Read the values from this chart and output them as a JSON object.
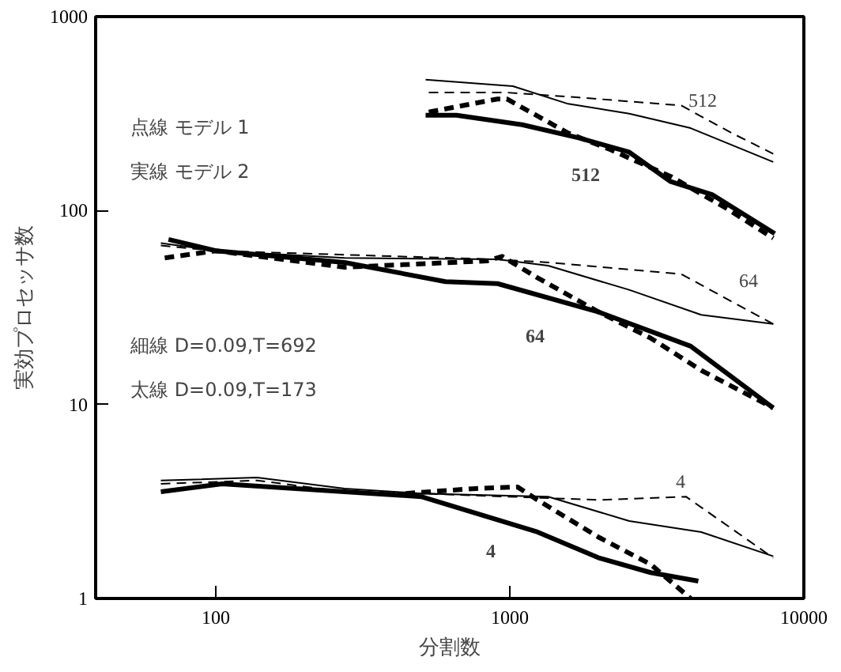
{
  "chart_data": {
    "type": "line",
    "xlabel": "分割数",
    "ylabel": "実効プロセッサ数",
    "log": "xy",
    "xlim": [
      39,
      10000
    ],
    "ylim": [
      1,
      1000
    ],
    "xticks": [
      100,
      1000,
      10000
    ],
    "yticks": [
      1,
      10,
      100,
      1000
    ],
    "grid": false,
    "series": [
      {
        "color": "#000000",
        "line_style": "solid",
        "x": [
          517,
          1024,
          1578,
          2547,
          4121,
          7870
        ],
        "values": [
          473,
          438,
          355,
          316,
          266,
          178
        ]
      },
      {
        "color": "#000000",
        "line_style": "dashed",
        "x": [
          530,
          977,
          1714,
          3828,
          5689,
          7870
        ],
        "values": [
          406,
          406,
          383,
          348,
          251,
          196
        ]
      },
      {
        "color": "#000000",
        "line_style": "solid",
        "x": [
          517,
          658,
          1101,
          1714,
          2547,
          3524,
          4870,
          7962
        ],
        "values": [
          310,
          310,
          277,
          237,
          200,
          141,
          121,
          76
        ]
      },
      {
        "color": "#000000",
        "line_style": "dashed",
        "x": [
          530,
          908,
          977,
          1578,
          2183,
          3524,
          5495,
          7870
        ],
        "values": [
          322,
          376,
          376,
          251,
          207,
          150,
          102,
          72
        ]
      },
      {
        "color": "#000000",
        "line_style": "solid",
        "x": [
          65,
          100,
          274,
          908,
          1349,
          2547,
          4477,
          7870
        ],
        "values": [
          68,
          62,
          57,
          56,
          52,
          39,
          29,
          26
        ]
      },
      {
        "color": "#000000",
        "line_style": "dashed",
        "x": [
          65,
          100,
          908,
          1349,
          3828,
          7870
        ],
        "values": [
          66,
          62,
          56,
          54,
          47,
          26
        ]
      },
      {
        "color": "#000000",
        "line_style": "solid",
        "x": [
          69,
          100,
          274,
          604,
          908,
          2004,
          4121,
          7870
        ],
        "values": [
          71,
          62,
          54,
          43,
          42,
          30,
          20,
          9.6
        ]
      },
      {
        "color": "#000000",
        "line_style": "dashed",
        "x": [
          67,
          100,
          274,
          836,
          942,
          1242,
          2004,
          3013,
          4477,
          7870
        ],
        "values": [
          57,
          62,
          51,
          55,
          58,
          45,
          30,
          22,
          15,
          9.6
        ]
      },
      {
        "color": "#000000",
        "line_style": "solid",
        "x": [
          65,
          138,
          274,
          499,
          1349,
          2547,
          4477,
          7870
        ],
        "values": [
          4.06,
          4.2,
          3.69,
          3.48,
          3.35,
          2.51,
          2.2,
          1.65
        ]
      },
      {
        "color": "#000000",
        "line_style": "dashed",
        "x": [
          65,
          138,
          274,
          499,
          2004,
          3972,
          7870
        ],
        "values": [
          3.9,
          4.06,
          3.55,
          3.48,
          3.22,
          3.35,
          1.62
        ]
      },
      {
        "color": "#000000",
        "line_style": "solid",
        "x": [
          65,
          105,
          274,
          499,
          1242,
          2004,
          3013,
          4375
        ],
        "values": [
          3.55,
          3.9,
          3.55,
          3.35,
          2.2,
          1.62,
          1.36,
          1.23
        ]
      },
      {
        "color": "#000000",
        "line_style": "dashed",
        "x": [
          442,
          767,
          1061,
          1242,
          2004,
          3013,
          4121
        ],
        "values": [
          3.48,
          3.69,
          3.76,
          3.22,
          2.07,
          1.5,
          1.0
        ]
      }
    ],
    "annotations": [
      "点線 モデル 1",
      "実線 モデル 2",
      "細線 D=0.09,T=692",
      "太線 D=0.09,T=173",
      "512",
      "512",
      "64",
      "64",
      "4",
      "4"
    ]
  }
}
